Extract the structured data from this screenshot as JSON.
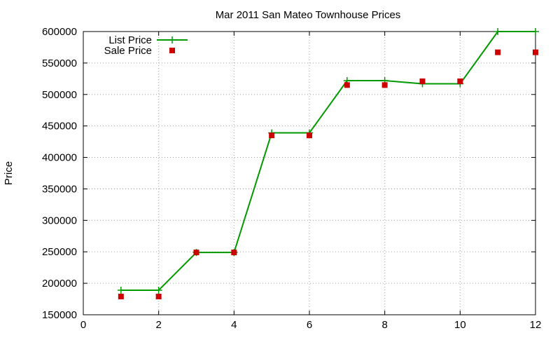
{
  "chart_data": {
    "type": "line",
    "title": "Mar 2011 San Mateo Townhouse Prices",
    "xlabel": "",
    "ylabel": "Price",
    "xlim": [
      0,
      12
    ],
    "ylim": [
      150000,
      600000
    ],
    "x_ticks": [
      0,
      2,
      4,
      6,
      8,
      10,
      12
    ],
    "y_ticks": [
      150000,
      200000,
      250000,
      300000,
      350000,
      400000,
      450000,
      500000,
      550000,
      600000
    ],
    "grid": true,
    "legend_position": "top-left",
    "series": [
      {
        "name": "List Price",
        "style": "line-with-plus-markers",
        "color": "#009900",
        "x": [
          1,
          2,
          3,
          4,
          5,
          6,
          7,
          8,
          9,
          10,
          11,
          12
        ],
        "y": [
          189000,
          189000,
          249000,
          249000,
          439000,
          439000,
          522000,
          522000,
          517000,
          517000,
          600000,
          600000
        ]
      },
      {
        "name": "Sale Price",
        "style": "square-markers",
        "color": "#cc0000",
        "x": [
          1,
          2,
          3,
          4,
          5,
          6,
          7,
          8,
          9,
          10,
          11,
          12
        ],
        "y": [
          179000,
          179000,
          249000,
          249000,
          435000,
          435000,
          515000,
          515000,
          521000,
          521000,
          567000,
          567000
        ]
      }
    ]
  }
}
